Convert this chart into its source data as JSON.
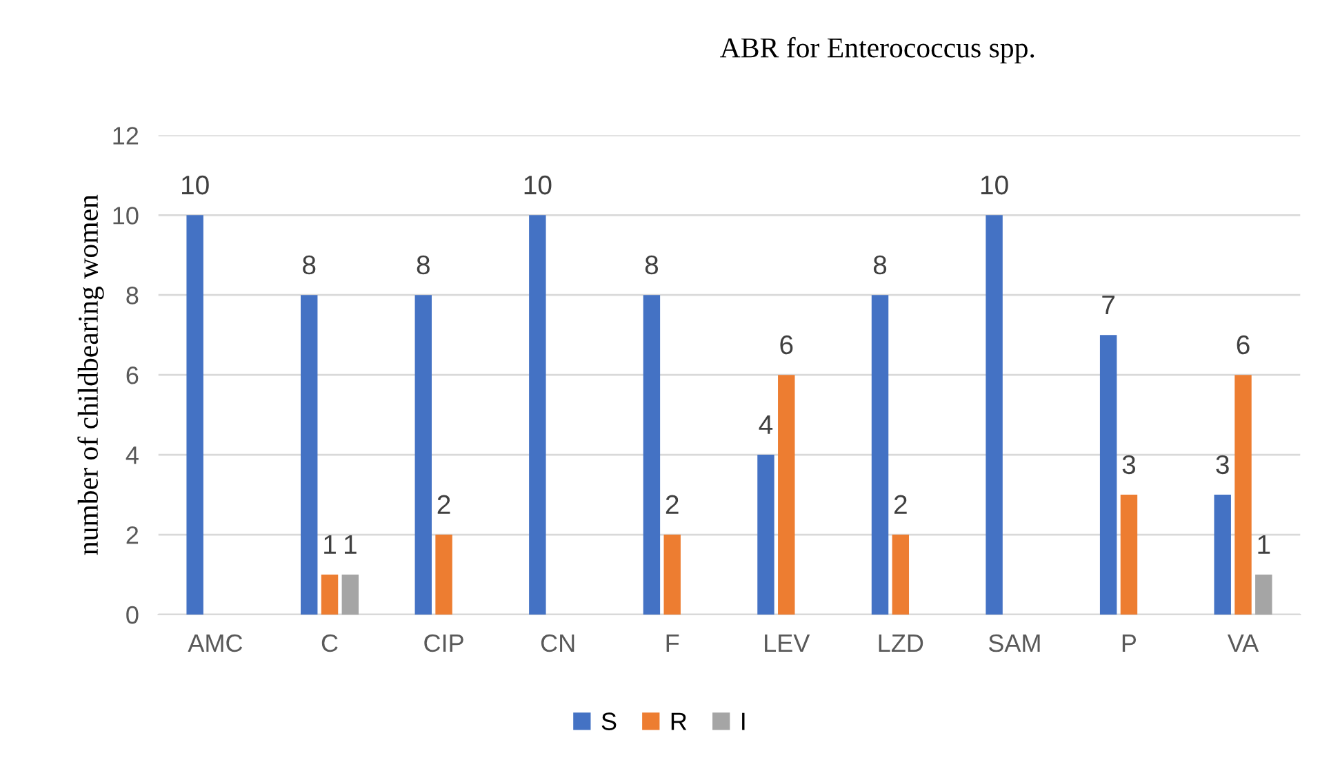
{
  "chart_data": {
    "type": "bar",
    "title": "ABR for Enterococcus spp.",
    "ylabel": "number of childbearing women",
    "categories": [
      "AMC",
      "C",
      "CIP",
      "CN",
      "F",
      "LEV",
      "LZD",
      "SAM",
      "P",
      "VA"
    ],
    "series": [
      {
        "name": "S",
        "color": "#4472c4",
        "values": [
          10,
          8,
          8,
          10,
          8,
          4,
          8,
          10,
          7,
          3
        ]
      },
      {
        "name": "R",
        "color": "#ed7d31",
        "values": [
          null,
          1,
          2,
          null,
          2,
          6,
          2,
          null,
          3,
          6
        ]
      },
      {
        "name": "I",
        "color": "#a5a5a5",
        "values": [
          null,
          1,
          null,
          null,
          null,
          null,
          null,
          null,
          null,
          1
        ]
      }
    ],
    "ylim": [
      0,
      12
    ],
    "yticks": [
      0,
      2,
      4,
      6,
      8,
      10,
      12
    ],
    "grid": "y",
    "legend": "bottom",
    "data_labels": true
  }
}
